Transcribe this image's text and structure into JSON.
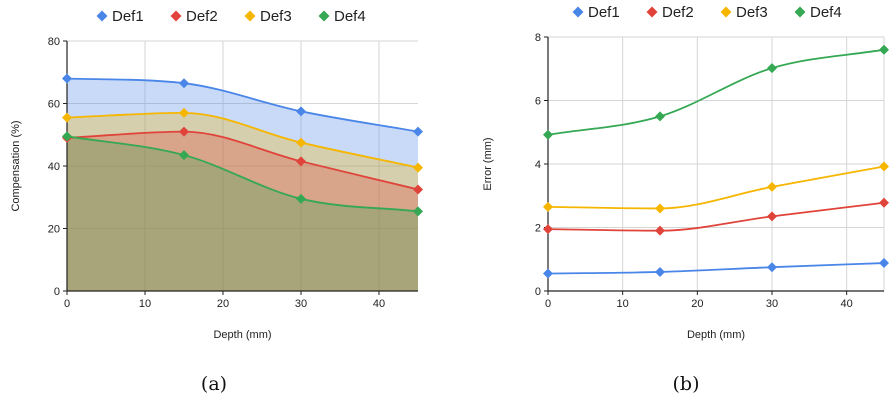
{
  "colors": {
    "Def1": "#4a86e8",
    "Def2": "#e0433a",
    "Def3": "#f6b600",
    "Def4": "#34a853",
    "grid": "#d6d6d6",
    "axis": "#222222"
  },
  "chart_data": [
    {
      "type": "area",
      "caption": "(a)",
      "xlabel": "Depth (mm)",
      "ylabel": "Compensation (%)",
      "xlim": [
        0,
        45
      ],
      "ylim": [
        0,
        80
      ],
      "xticks": [
        0,
        10,
        20,
        30,
        40
      ],
      "yticks": [
        0,
        20,
        40,
        60,
        80
      ],
      "grid": true,
      "legend": "top",
      "x": [
        0,
        15,
        30,
        45
      ],
      "series": [
        {
          "name": "Def1",
          "values": [
            68,
            66.5,
            57.5,
            51
          ]
        },
        {
          "name": "Def3",
          "values": [
            55.5,
            57,
            47.5,
            39.5
          ]
        },
        {
          "name": "Def2",
          "values": [
            49,
            51,
            41.5,
            32.5
          ]
        },
        {
          "name": "Def4",
          "values": [
            49.5,
            43.5,
            29.5,
            25.5
          ]
        }
      ]
    },
    {
      "type": "line",
      "caption": "(b)",
      "xlabel": "Depth (mm)",
      "ylabel": "Error (mm)",
      "xlim": [
        0,
        45
      ],
      "ylim": [
        0,
        8
      ],
      "xticks": [
        0,
        10,
        20,
        30,
        40
      ],
      "yticks": [
        0,
        2,
        4,
        6,
        8
      ],
      "grid": true,
      "legend": "top",
      "x": [
        0,
        15,
        30,
        45
      ],
      "series": [
        {
          "name": "Def1",
          "values": [
            0.55,
            0.6,
            0.75,
            0.88
          ]
        },
        {
          "name": "Def2",
          "values": [
            1.95,
            1.9,
            2.35,
            2.78
          ]
        },
        {
          "name": "Def3",
          "values": [
            2.65,
            2.6,
            3.28,
            3.92
          ]
        },
        {
          "name": "Def4",
          "values": [
            4.92,
            5.5,
            7.02,
            7.6
          ]
        }
      ]
    }
  ]
}
